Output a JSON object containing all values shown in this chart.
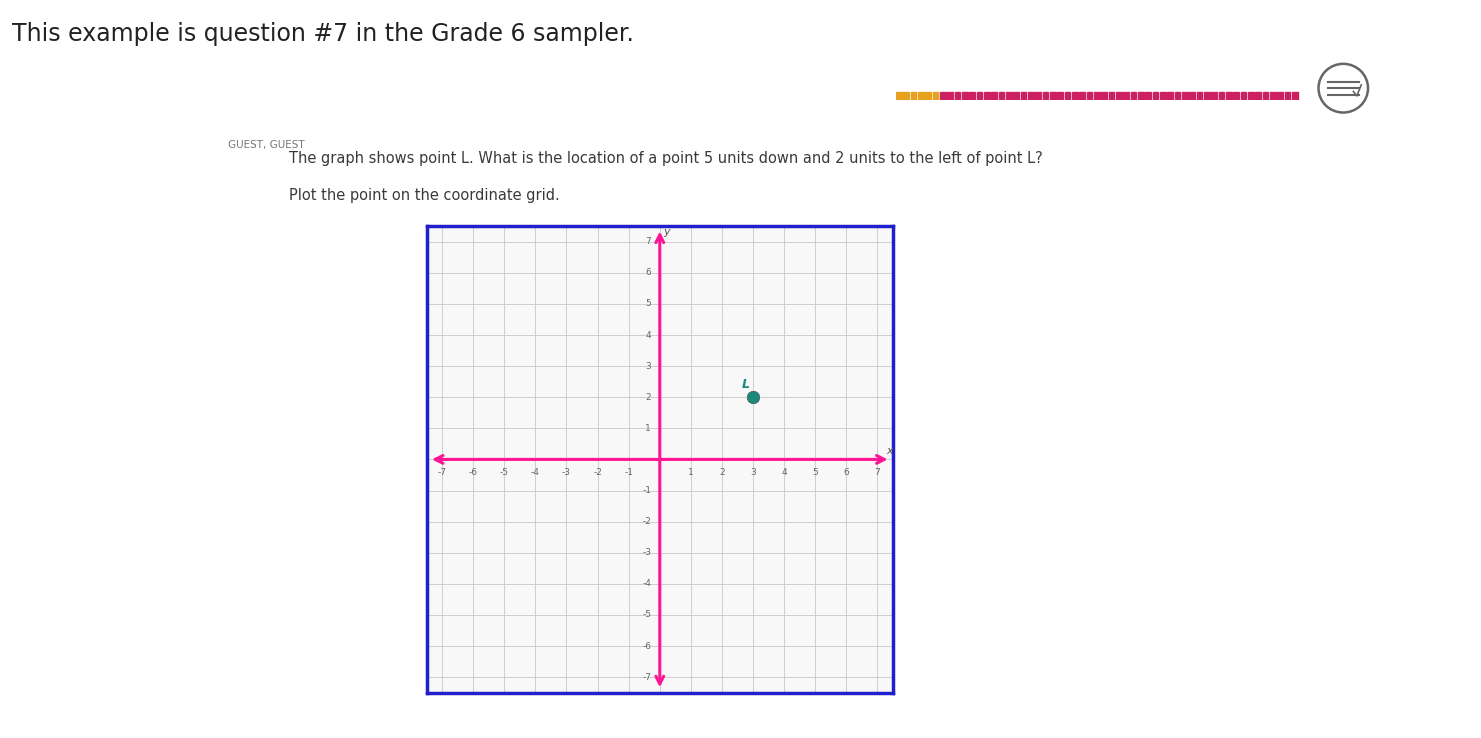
{
  "title": "This example is question #7 in the Grade 6 sampler.",
  "question_number": "7",
  "guest_label": "GUEST, GUEST",
  "question_text_1": "The graph shows point L. What is the location of a point 5 units down and 2 units to the left of point L?",
  "question_text_2": "Plot the point on the coordinate grid.",
  "point_L": [
    3,
    2
  ],
  "point_label": "L",
  "grid_min": -7,
  "grid_max": 7,
  "axis_color": "#FF1493",
  "grid_color": "#C8C8C8",
  "border_color": "#2020CC",
  "point_color": "#1A8A7A",
  "point_label_color": "#1A8A7A",
  "background_color": "#FFFFFF",
  "question_box_color": "#2E7D9A",
  "question_box_text_color": "#FFFFFF",
  "title_color": "#222222",
  "question_text_color": "#3a3a3a",
  "separator_line_color": "#5B9EB5",
  "tick_color": "#666666",
  "grid_bg": "#F8F8F8",
  "y_label": "y",
  "x_label": "x",
  "progress_orange": "#E8A020",
  "progress_pink": "#CC2060"
}
